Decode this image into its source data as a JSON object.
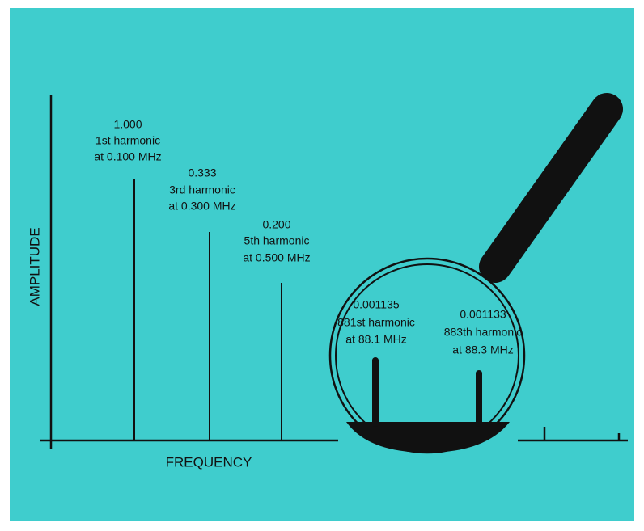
{
  "axes": {
    "y_label": "AMPLITUDE",
    "x_label": "FREQUENCY"
  },
  "harmonics": [
    {
      "amplitude": "1.000",
      "name": "1st harmonic",
      "frequency": "at 0.100 MHz"
    },
    {
      "amplitude": "0.333",
      "name": "3rd harmonic",
      "frequency": "at 0.300 MHz"
    },
    {
      "amplitude": "0.200",
      "name": "5th harmonic",
      "frequency": "at 0.500 MHz"
    }
  ],
  "magnified_harmonics": [
    {
      "amplitude": "0.001135",
      "name": "881st harmonic",
      "frequency": "at 88.1 MHz"
    },
    {
      "amplitude": "0.001133",
      "name": "883th harmonic",
      "frequency": "at 88.3 MHz"
    }
  ]
}
